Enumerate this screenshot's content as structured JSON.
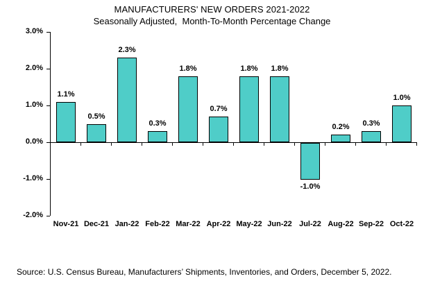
{
  "chart_data": {
    "type": "bar",
    "title": "MANUFACTURERS' NEW ORDERS 2021-2022",
    "subtitle": "Seasonally Adjusted,  Month-To-Month Percentage Change",
    "categories": [
      "Nov-21",
      "Dec-21",
      "Jan-22",
      "Feb-22",
      "Mar-22",
      "Apr-22",
      "May-22",
      "Jun-22",
      "Jul-22",
      "Aug-22",
      "Sep-22",
      "Oct-22"
    ],
    "values": [
      1.1,
      0.5,
      2.3,
      0.3,
      1.8,
      0.7,
      1.8,
      1.8,
      -1.0,
      0.2,
      0.3,
      1.0
    ],
    "data_labels": [
      "1.1%",
      "0.5%",
      "2.3%",
      "0.3%",
      "1.8%",
      "0.7%",
      "1.8%",
      "1.8%",
      "-1.0%",
      "0.2%",
      "0.3%",
      "1.0%"
    ],
    "y_tick_labels": [
      "3.0%",
      "2.0%",
      "1.0%",
      "0.0%",
      "-1.0%",
      "-2.0%"
    ],
    "y_tick_values": [
      3.0,
      2.0,
      1.0,
      0.0,
      -1.0,
      -2.0
    ],
    "ylim": [
      -2.0,
      3.0
    ],
    "grid": "off",
    "legend": "none",
    "bar_fill_color": "#4FCDC8",
    "bar_border_color": "#000000",
    "axis_color": "#000000",
    "text_color": "#000000"
  },
  "source": {
    "text": "Source: U.S. Census Bureau, Manufacturers’ Shipments, Inventories, and Orders, December 5, 2022."
  }
}
